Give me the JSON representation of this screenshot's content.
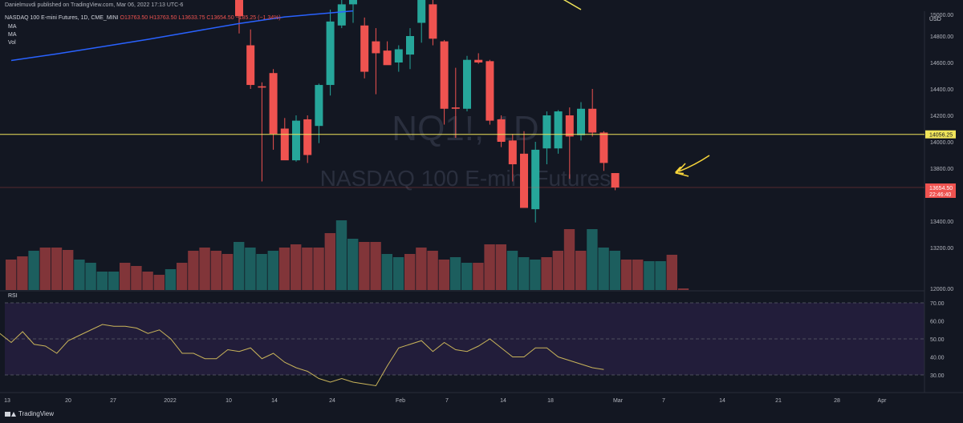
{
  "header": {
    "publisher_line": "Danielmuvdi published on TradingView.com, Mar 06, 2022 17:13 UTC-6",
    "symbol_line": "NASDAQ 100 E-mini Futures, 1D, CME_MINI",
    "ohlc": {
      "open": "O13763.50",
      "high": "H13763.50",
      "low": "L13633.75",
      "close": "C13654.50",
      "change": "−185.25 (−1.34%)"
    },
    "indicators": [
      "MA",
      "MA",
      "Vol"
    ]
  },
  "watermark": {
    "ticker": "NQ1!, 1D",
    "name": "NASDAQ 100 E-mini Futures"
  },
  "footer": {
    "brand": "TradingView"
  },
  "colors": {
    "background": "#131722",
    "up": "#26a69a",
    "down": "#ef5350",
    "ma_line": "#2962ff",
    "level_line": "#f0e45a",
    "rsi_line": "#c9b45a",
    "rsi_band": "#221d3a",
    "annotation": "#f5d33a"
  },
  "chart_data": [
    {
      "type": "candlestick",
      "title": "NASDAQ 100 E-mini Futures, 1D, CME_MINI",
      "currency_label": "USD",
      "ylim": [
        12000,
        15000
      ],
      "y_ticks": [
        "15000.00",
        "14800.00",
        "14600.00",
        "14400.00",
        "14200.00",
        "14000.00",
        "13800.00",
        "13400.00",
        "13200.00",
        "12000.00"
      ],
      "price_labels": [
        {
          "text": "14056.25",
          "value": 14056.25,
          "style": "level"
        },
        {
          "text": "13654.50",
          "value": 13654.5,
          "subtext": "22:46:40",
          "style": "last"
        }
      ],
      "horizontal_line": 14056.25,
      "x_ticks": [
        "13",
        "20",
        "27",
        "2022",
        "10",
        "14",
        "24",
        "Feb",
        "7",
        "14",
        "18",
        "Mar",
        "7",
        "14",
        "21",
        "28",
        "Apr"
      ],
      "candles": [
        {
          "i": 20,
          "o": 15150,
          "h": 15250,
          "l": 14820,
          "c": 14950
        },
        {
          "i": 21,
          "o": 14730,
          "h": 14850,
          "l": 14400,
          "c": 14430
        },
        {
          "i": 22,
          "o": 14420,
          "h": 14450,
          "l": 13700,
          "c": 14410
        },
        {
          "i": 23,
          "o": 14520,
          "h": 14550,
          "l": 13940,
          "c": 14060
        },
        {
          "i": 24,
          "o": 14100,
          "h": 14180,
          "l": 13870,
          "c": 13860
        },
        {
          "i": 25,
          "o": 13860,
          "h": 14200,
          "l": 13850,
          "c": 14160
        },
        {
          "i": 26,
          "o": 14170,
          "h": 14200,
          "l": 13840,
          "c": 13900
        },
        {
          "i": 27,
          "o": 14120,
          "h": 14440,
          "l": 13990,
          "c": 14430
        },
        {
          "i": 28,
          "o": 14430,
          "h": 15000,
          "l": 14350,
          "c": 14910
        },
        {
          "i": 29,
          "o": 14880,
          "h": 15080,
          "l": 14860,
          "c": 15040
        },
        {
          "i": 30,
          "o": 15040,
          "h": 15230,
          "l": 14900,
          "c": 15170
        },
        {
          "i": 31,
          "o": 14880,
          "h": 14940,
          "l": 14480,
          "c": 14530
        },
        {
          "i": 32,
          "o": 14760,
          "h": 14860,
          "l": 14360,
          "c": 14670
        },
        {
          "i": 33,
          "o": 14690,
          "h": 14760,
          "l": 14590,
          "c": 14580
        },
        {
          "i": 34,
          "o": 14600,
          "h": 14730,
          "l": 14530,
          "c": 14700
        },
        {
          "i": 35,
          "o": 14660,
          "h": 14860,
          "l": 14550,
          "c": 14800
        },
        {
          "i": 36,
          "o": 14900,
          "h": 15100,
          "l": 14750,
          "c": 15080
        },
        {
          "i": 37,
          "o": 15040,
          "h": 15130,
          "l": 14730,
          "c": 14780
        },
        {
          "i": 38,
          "o": 14760,
          "h": 14770,
          "l": 14130,
          "c": 14250
        },
        {
          "i": 39,
          "o": 14260,
          "h": 14560,
          "l": 14030,
          "c": 14250
        },
        {
          "i": 40,
          "o": 14250,
          "h": 14650,
          "l": 14230,
          "c": 14620
        },
        {
          "i": 41,
          "o": 14620,
          "h": 14670,
          "l": 14590,
          "c": 14600
        },
        {
          "i": 42,
          "o": 14610,
          "h": 14620,
          "l": 14130,
          "c": 14160
        },
        {
          "i": 43,
          "o": 14170,
          "h": 14200,
          "l": 13960,
          "c": 14000
        },
        {
          "i": 44,
          "o": 14010,
          "h": 14060,
          "l": 13700,
          "c": 13830
        },
        {
          "i": 45,
          "o": 13910,
          "h": 14080,
          "l": 13500,
          "c": 13500
        },
        {
          "i": 46,
          "o": 13490,
          "h": 14000,
          "l": 13390,
          "c": 13940
        },
        {
          "i": 47,
          "o": 13950,
          "h": 14230,
          "l": 13830,
          "c": 14200
        },
        {
          "i": 48,
          "o": 13950,
          "h": 14240,
          "l": 13910,
          "c": 14230
        },
        {
          "i": 49,
          "o": 14200,
          "h": 14260,
          "l": 13720,
          "c": 14040
        },
        {
          "i": 50,
          "o": 14050,
          "h": 14300,
          "l": 14010,
          "c": 14250
        },
        {
          "i": 51,
          "o": 14250,
          "h": 14400,
          "l": 14040,
          "c": 14070
        },
        {
          "i": 52,
          "o": 14070,
          "h": 14080,
          "l": 13780,
          "c": 13840
        },
        {
          "i": 53,
          "o": 13763.5,
          "h": 13763.5,
          "l": 13633.75,
          "c": 13654.5
        }
      ],
      "moving_average": [
        {
          "i": 0,
          "v": 14615
        },
        {
          "i": 4,
          "v": 14665
        },
        {
          "i": 8,
          "v": 14720
        },
        {
          "i": 12,
          "v": 14775
        },
        {
          "i": 16,
          "v": 14835
        },
        {
          "i": 20,
          "v": 14895
        },
        {
          "i": 24,
          "v": 14945
        },
        {
          "i": 28,
          "v": 14975
        },
        {
          "i": 30,
          "v": 14990
        }
      ],
      "moving_average_2_fragment": [
        {
          "i": 48,
          "v": 15100
        },
        {
          "i": 50,
          "v": 15000
        }
      ],
      "volume_bars": [
        {
          "i": 0,
          "h": 0.38,
          "up": false
        },
        {
          "i": 1,
          "h": 0.42,
          "up": false
        },
        {
          "i": 2,
          "h": 0.49,
          "up": true
        },
        {
          "i": 3,
          "h": 0.53,
          "up": false
        },
        {
          "i": 4,
          "h": 0.53,
          "up": false
        },
        {
          "i": 5,
          "h": 0.5,
          "up": false
        },
        {
          "i": 6,
          "h": 0.38,
          "up": true
        },
        {
          "i": 7,
          "h": 0.34,
          "up": true
        },
        {
          "i": 8,
          "h": 0.23,
          "up": true
        },
        {
          "i": 9,
          "h": 0.23,
          "up": true
        },
        {
          "i": 10,
          "h": 0.34,
          "up": false
        },
        {
          "i": 11,
          "h": 0.3,
          "up": false
        },
        {
          "i": 12,
          "h": 0.23,
          "up": false
        },
        {
          "i": 13,
          "h": 0.19,
          "up": false
        },
        {
          "i": 14,
          "h": 0.26,
          "up": true
        },
        {
          "i": 15,
          "h": 0.34,
          "up": false
        },
        {
          "i": 16,
          "h": 0.49,
          "up": false
        },
        {
          "i": 17,
          "h": 0.53,
          "up": false
        },
        {
          "i": 18,
          "h": 0.49,
          "up": false
        },
        {
          "i": 19,
          "h": 0.45,
          "up": false
        },
        {
          "i": 20,
          "h": 0.6,
          "up": true
        },
        {
          "i": 21,
          "h": 0.53,
          "up": true
        },
        {
          "i": 22,
          "h": 0.45,
          "up": true
        },
        {
          "i": 23,
          "h": 0.49,
          "up": true
        },
        {
          "i": 24,
          "h": 0.53,
          "up": false
        },
        {
          "i": 25,
          "h": 0.57,
          "up": false
        },
        {
          "i": 26,
          "h": 0.53,
          "up": false
        },
        {
          "i": 27,
          "h": 0.53,
          "up": false
        },
        {
          "i": 28,
          "h": 0.71,
          "up": false
        },
        {
          "i": 29,
          "h": 0.87,
          "up": true
        },
        {
          "i": 30,
          "h": 0.64,
          "up": true
        },
        {
          "i": 31,
          "h": 0.6,
          "up": false
        },
        {
          "i": 32,
          "h": 0.6,
          "up": false
        },
        {
          "i": 33,
          "h": 0.45,
          "up": true
        },
        {
          "i": 34,
          "h": 0.41,
          "up": true
        },
        {
          "i": 35,
          "h": 0.45,
          "up": false
        },
        {
          "i": 36,
          "h": 0.53,
          "up": false
        },
        {
          "i": 37,
          "h": 0.49,
          "up": false
        },
        {
          "i": 38,
          "h": 0.38,
          "up": false
        },
        {
          "i": 39,
          "h": 0.41,
          "up": true
        },
        {
          "i": 40,
          "h": 0.34,
          "up": true
        },
        {
          "i": 41,
          "h": 0.34,
          "up": false
        },
        {
          "i": 42,
          "h": 0.57,
          "up": false
        },
        {
          "i": 43,
          "h": 0.57,
          "up": false
        },
        {
          "i": 44,
          "h": 0.49,
          "up": true
        },
        {
          "i": 45,
          "h": 0.41,
          "up": true
        },
        {
          "i": 46,
          "h": 0.38,
          "up": true
        },
        {
          "i": 47,
          "h": 0.41,
          "up": false
        },
        {
          "i": 48,
          "h": 0.49,
          "up": false
        },
        {
          "i": 49,
          "h": 0.76,
          "up": false
        },
        {
          "i": 50,
          "h": 0.49,
          "up": false
        },
        {
          "i": 51,
          "h": 0.76,
          "up": true
        },
        {
          "i": 52,
          "h": 0.53,
          "up": true
        },
        {
          "i": 53,
          "h": 0.49,
          "up": true
        },
        {
          "i": 54,
          "h": 0.38,
          "up": false
        },
        {
          "i": 55,
          "h": 0.38,
          "up": false
        },
        {
          "i": 56,
          "h": 0.36,
          "up": true
        },
        {
          "i": 57,
          "h": 0.36,
          "up": true
        },
        {
          "i": 58,
          "h": 0.44,
          "up": false
        },
        {
          "i": 59,
          "h": 0.02,
          "up": false
        }
      ]
    },
    {
      "type": "line",
      "title": "RSI",
      "ylim": [
        23,
        75
      ],
      "y_ticks": [
        "70.00",
        "60.00",
        "50.00",
        "40.00",
        "30.00"
      ],
      "band": [
        30,
        70
      ],
      "x": [
        0,
        1,
        2,
        3,
        4,
        5,
        6,
        7,
        8,
        9,
        10,
        11,
        12,
        13,
        14,
        15,
        16,
        17,
        18,
        19,
        20,
        21,
        22,
        23,
        24,
        25,
        26,
        27,
        28,
        29,
        30,
        31,
        32,
        33,
        34,
        35,
        36,
        37,
        38,
        39,
        40,
        41,
        42,
        43,
        44,
        45,
        46,
        47,
        48,
        49,
        50,
        51,
        52,
        53
      ],
      "values": [
        53,
        48,
        54,
        47,
        46,
        42,
        49,
        52,
        55,
        58,
        57,
        57,
        56,
        53,
        55,
        50,
        42,
        42,
        39,
        39,
        44,
        43,
        45,
        39,
        42,
        37,
        34,
        32,
        28,
        26,
        28,
        26,
        25,
        24,
        35,
        45,
        47,
        49,
        43,
        48,
        44,
        43,
        46,
        50,
        45,
        40,
        40,
        45,
        45,
        40,
        38,
        36,
        34,
        33
      ]
    }
  ]
}
